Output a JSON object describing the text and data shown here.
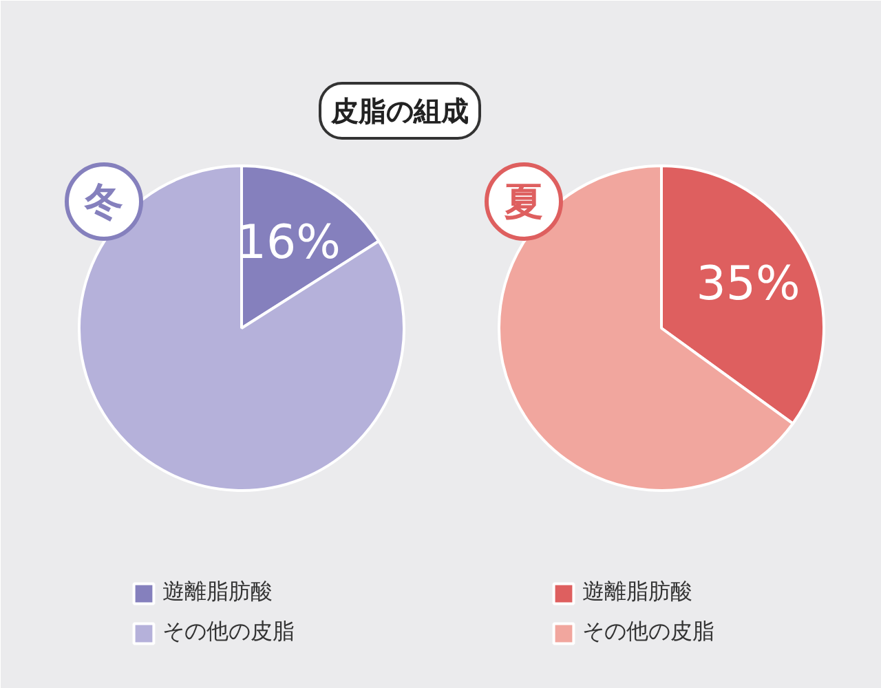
{
  "chart_data": [
    {
      "type": "other",
      "title": "皮脂の組成"
    },
    {
      "type": "pie",
      "title": "冬",
      "categories": [
        "遊離脂肪酸",
        "その他の皮脂"
      ],
      "values": [
        16,
        84
      ],
      "colors": [
        "#8580bd",
        "#b5b1da"
      ],
      "value_labels": [
        "16%",
        null
      ],
      "legend": "bottom"
    },
    {
      "type": "pie",
      "title": "夏",
      "categories": [
        "遊離脂肪酸",
        "その他の皮脂"
      ],
      "values": [
        35,
        65
      ],
      "colors": [
        "#de5f5f",
        "#f1a69e"
      ],
      "value_labels": [
        "35%",
        null
      ],
      "legend": "bottom"
    }
  ]
}
